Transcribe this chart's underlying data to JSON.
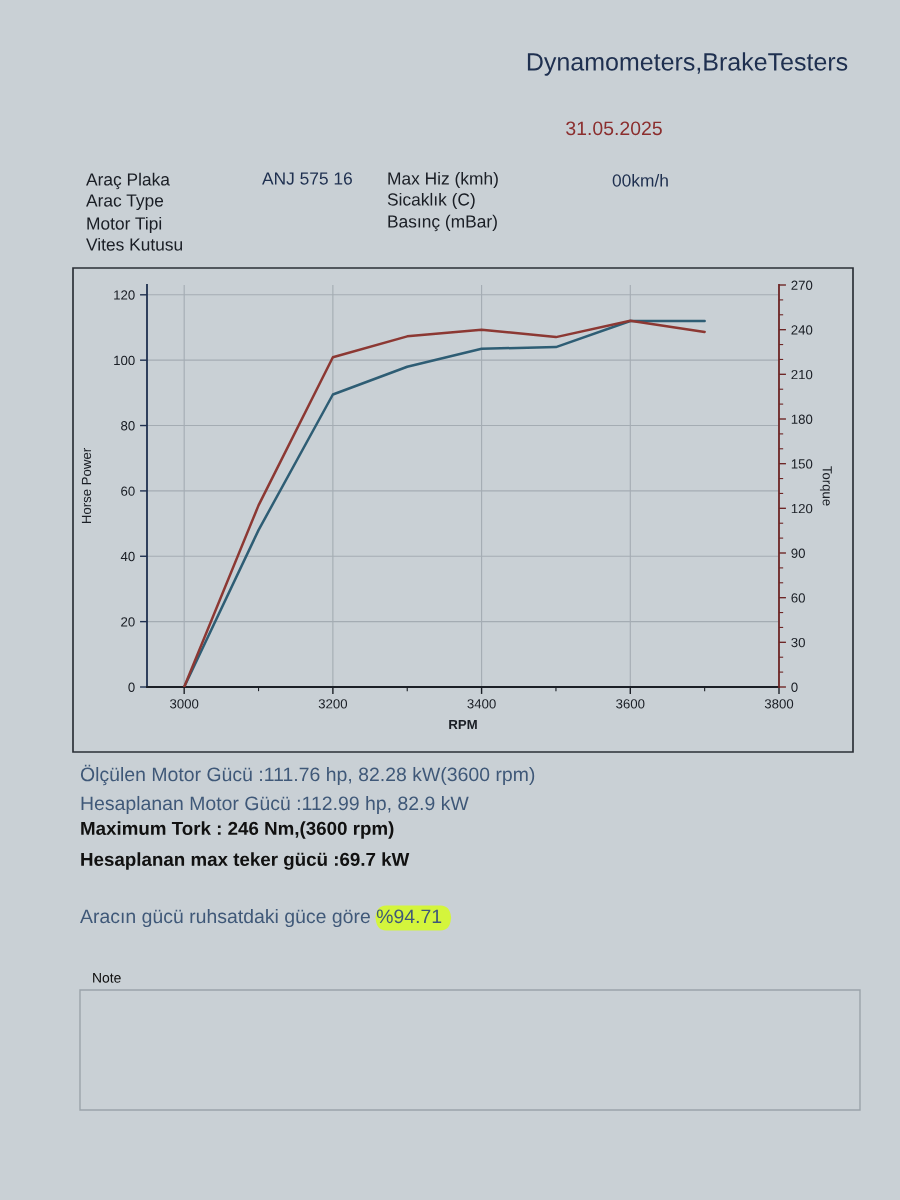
{
  "chart_data": {
    "type": "line",
    "title": "Dynamometers,BrakeTesters",
    "subtitle": "31.05.2025",
    "xlabel": "RPM",
    "ylabel": "Horse Power",
    "y2label": "Torque",
    "x": [
      3000,
      3100,
      3200,
      3300,
      3400,
      3500,
      3600,
      3700
    ],
    "series": [
      {
        "color": "#2e5d74",
        "values": [
          0,
          48,
          89.5,
          98,
          103.5,
          104,
          112,
          112
        ]
      },
      {
        "color": "#8c3833",
        "axis": "y2",
        "values": [
          0,
          122,
          221.5,
          235.5,
          240,
          235,
          246,
          238.5
        ]
      }
    ],
    "xlim": [
      2950,
      3800
    ],
    "xticks": [
      3000,
      {
        "value": 3100,
        "label": null
      },
      3200,
      {
        "value": 3300,
        "label": null
      },
      3400,
      {
        "value": 3500,
        "label": null
      },
      3600,
      {
        "value": 3700,
        "label": null
      },
      3800
    ],
    "ylim": [
      0,
      123
    ],
    "yticks": [
      0,
      20,
      40,
      60,
      80,
      100,
      120
    ],
    "y2lim": [
      0,
      270
    ],
    "y2ticks": [
      0,
      {
        "value": 10,
        "label": null
      },
      {
        "value": 20,
        "label": null
      },
      30,
      {
        "value": 40,
        "label": null
      },
      {
        "value": 50,
        "label": null
      },
      60,
      {
        "value": 70,
        "label": null
      },
      {
        "value": 80,
        "label": null
      },
      90,
      {
        "value": 100,
        "label": null
      },
      {
        "value": 110,
        "label": null
      },
      120,
      {
        "value": 130,
        "label": null
      },
      {
        "value": 140,
        "label": null
      },
      150,
      {
        "value": 160,
        "label": null
      },
      {
        "value": 170,
        "label": null
      },
      180,
      {
        "value": 190,
        "label": null
      },
      {
        "value": 200,
        "label": null
      },
      210,
      {
        "value": 220,
        "label": null
      },
      {
        "value": 230,
        "label": null
      },
      240,
      {
        "value": 250,
        "label": null
      },
      {
        "value": 260,
        "label": null
      },
      270
    ],
    "grid": true,
    "annotations": [
      "Araç Plaka",
      "Arac Type",
      "Motor Tipi",
      "Vites Kutusu",
      "ANJ 575 16",
      "Max Hiz (kmh)",
      "Sicaklık (C)",
      "Basınç (mBar)",
      "00km/h",
      "Ölçülen Motor Gücü :111.76 hp, 82.28 kW(3600 rpm)",
      "Hesaplanan Motor Gücü :112.99 hp, 82.9 kW",
      "Maximum Tork : 246 Nm,(3600 rpm)",
      "Hesaplanan max teker gücü :69.7 kW",
      "Aracın gücü ruhsatdaki güce göre %94.71",
      "Note"
    ]
  }
}
